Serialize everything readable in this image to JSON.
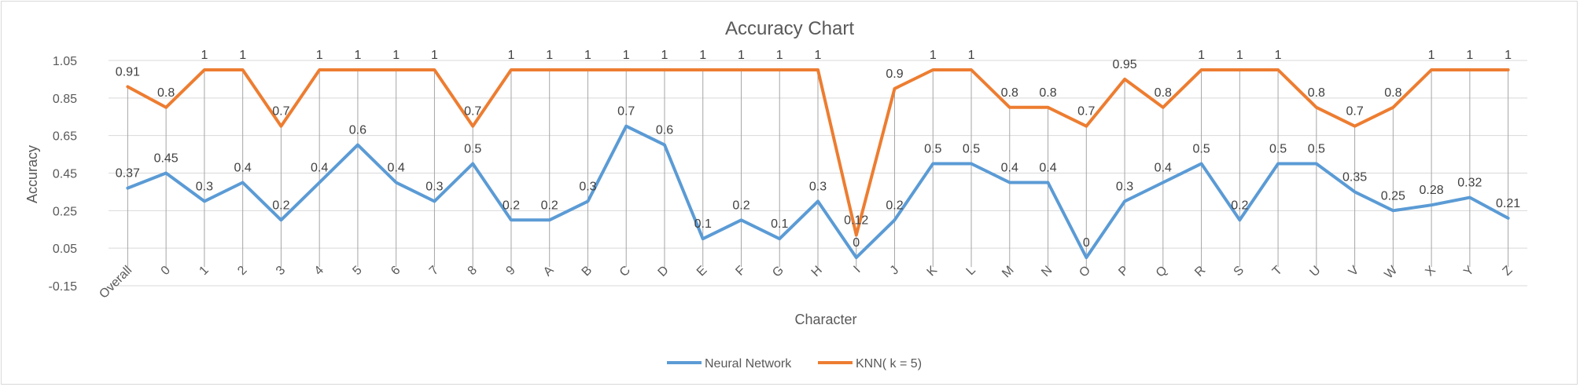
{
  "chart_data": {
    "type": "line",
    "title": "Accuracy Chart",
    "xlabel": "Character",
    "ylabel": "Accuracy",
    "ylim": [
      -0.15,
      1.05
    ],
    "yticks": [
      "1.05",
      "0.85",
      "0.65",
      "0.45",
      "0.25",
      "0.05",
      "-0.15"
    ],
    "grid": true,
    "legend_position": "bottom",
    "categories": [
      "Overall",
      "0",
      "1",
      "2",
      "3",
      "4",
      "5",
      "6",
      "7",
      "8",
      "9",
      "A",
      "B",
      "C",
      "D",
      "E",
      "F",
      "G",
      "H",
      "I",
      "J",
      "K",
      "L",
      "M",
      "N",
      "O",
      "P",
      "Q",
      "R",
      "S",
      "T",
      "U",
      "V",
      "W",
      "X",
      "Y",
      "Z"
    ],
    "series": [
      {
        "name": "Neural Network",
        "color": "#5b9bd5",
        "values": [
          0.37,
          0.45,
          0.3,
          0.4,
          0.2,
          0.4,
          0.6,
          0.4,
          0.3,
          0.5,
          0.2,
          0.2,
          0.3,
          0.7,
          0.6,
          0.1,
          0.2,
          0.1,
          0.3,
          0,
          0.2,
          0.5,
          0.5,
          0.4,
          0.4,
          0,
          0.3,
          0.4,
          0.5,
          0.2,
          0.5,
          0.5,
          0.35,
          0.25,
          0.28,
          0.32,
          0.21
        ],
        "labels": [
          "0.37",
          "0.45",
          "0.3",
          "0.4",
          "0.2",
          "0.4",
          "0.6",
          "0.4",
          "0.3",
          "0.5",
          "0.2",
          "0.2",
          "0.3",
          "0.7",
          "0.6",
          "0.1",
          "0.2",
          "0.1",
          "0.3",
          "0",
          "0.2",
          "0.5",
          "0.5",
          "0.4",
          "0.4",
          "0",
          "0.3",
          "0.4",
          "0.5",
          "0.2",
          "0.5",
          "0.5",
          "0.35",
          "0.25",
          "0.28",
          "0.32",
          "0.21"
        ]
      },
      {
        "name": "KNN( k = 5)",
        "color": "#ed7d31",
        "values": [
          0.91,
          0.8,
          1,
          1,
          0.7,
          1,
          1,
          1,
          1,
          0.7,
          1,
          1,
          1,
          1,
          1,
          1,
          1,
          1,
          1,
          0.12,
          0.9,
          1,
          1,
          0.8,
          0.8,
          0.7,
          0.95,
          0.8,
          1,
          1,
          1,
          0.8,
          0.7,
          0.8,
          1,
          1,
          1
        ],
        "labels": [
          "0.91",
          "0.8",
          "1",
          "1",
          "0.7",
          "1",
          "1",
          "1",
          "1",
          "0.7",
          "1",
          "1",
          "1",
          "1",
          "1",
          "1",
          "1",
          "1",
          "1",
          "0.12",
          "0.9",
          "1",
          "1",
          "0.8",
          "0.8",
          "0.7",
          "0.95",
          "0.8",
          "1",
          "1",
          "1",
          "0.8",
          "0.7",
          "0.8",
          "1",
          "1",
          "1"
        ]
      }
    ]
  }
}
